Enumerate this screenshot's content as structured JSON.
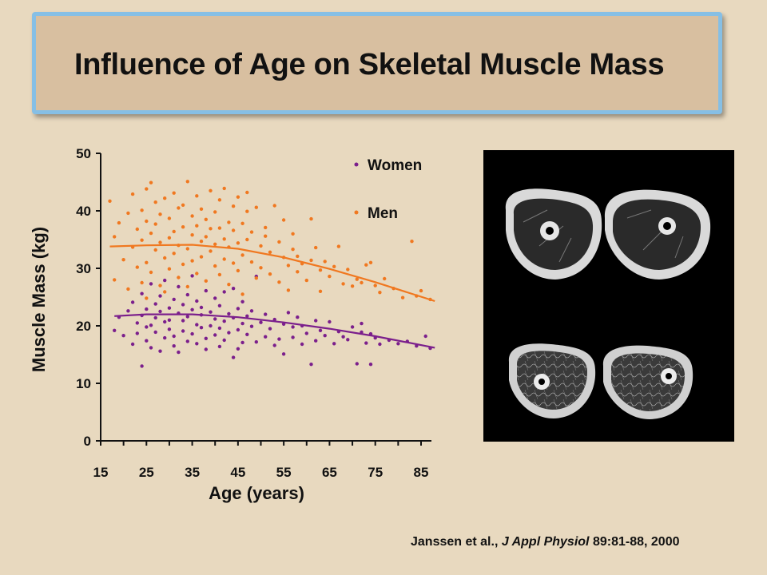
{
  "slide": {
    "title": "Influence of Age on Skeletal Muscle Mass"
  },
  "citation": {
    "authors": "Janssen et al.,",
    "journal": "J Appl Physiol",
    "reference": "89:81-88, 2000"
  },
  "image": {
    "description_icon": "mri-thigh-cross-section-icon"
  },
  "colors": {
    "women": "#7b1f8c",
    "men": "#f07820",
    "background": "#e8d9bf",
    "title_box": "#d8bfa0",
    "title_border": "#86bfe5"
  },
  "chart_data": {
    "type": "scatter",
    "title": "",
    "xlabel": "Age (years)",
    "ylabel": "Muscle Mass (kg)",
    "xlim": [
      15,
      90
    ],
    "ylim": [
      0,
      50
    ],
    "xticks": [
      15,
      25,
      35,
      45,
      55,
      65,
      75,
      85
    ],
    "yticks": [
      0,
      10,
      20,
      30,
      40,
      50
    ],
    "grid": false,
    "legend_position": "top-right",
    "series": [
      {
        "name": "Women",
        "color": "#7b1f8c",
        "trend": [
          [
            18,
            21.7
          ],
          [
            25,
            22.0
          ],
          [
            35,
            22.0
          ],
          [
            45,
            21.5
          ],
          [
            55,
            20.6
          ],
          [
            65,
            19.5
          ],
          [
            75,
            18.2
          ],
          [
            88,
            16.2
          ]
        ],
        "points": [
          [
            18,
            19.2
          ],
          [
            19,
            21.5
          ],
          [
            20,
            18.3
          ],
          [
            21,
            22.6
          ],
          [
            22,
            16.8
          ],
          [
            22,
            24.1
          ],
          [
            23,
            20.5
          ],
          [
            23,
            18.7
          ],
          [
            24,
            13.0
          ],
          [
            24,
            21.8
          ],
          [
            24,
            25.6
          ],
          [
            25,
            19.8
          ],
          [
            25,
            17.4
          ],
          [
            25,
            22.9
          ],
          [
            26,
            20.1
          ],
          [
            26,
            27.3
          ],
          [
            26,
            16.2
          ],
          [
            27,
            21.4
          ],
          [
            27,
            23.8
          ],
          [
            27,
            18.9
          ],
          [
            28,
            15.6
          ],
          [
            28,
            22.5
          ],
          [
            28,
            25.2
          ],
          [
            29,
            20.7
          ],
          [
            29,
            17.9
          ],
          [
            29,
            27.9
          ],
          [
            30,
            19.4
          ],
          [
            30,
            23.1
          ],
          [
            30,
            21.0
          ],
          [
            31,
            16.5
          ],
          [
            31,
            24.6
          ],
          [
            31,
            18.2
          ],
          [
            32,
            22.2
          ],
          [
            32,
            26.8
          ],
          [
            32,
            15.4
          ],
          [
            33,
            20.9
          ],
          [
            33,
            23.7
          ],
          [
            33,
            19.1
          ],
          [
            34,
            17.3
          ],
          [
            34,
            25.4
          ],
          [
            34,
            21.6
          ],
          [
            35,
            28.7
          ],
          [
            35,
            18.6
          ],
          [
            35,
            22.8
          ],
          [
            36,
            20.2
          ],
          [
            36,
            16.9
          ],
          [
            36,
            24.3
          ],
          [
            37,
            19.7
          ],
          [
            37,
            23.2
          ],
          [
            37,
            21.9
          ],
          [
            38,
            17.8
          ],
          [
            38,
            26.1
          ],
          [
            38,
            15.9
          ],
          [
            39,
            22.4
          ],
          [
            39,
            20.0
          ],
          [
            40,
            18.4
          ],
          [
            40,
            24.8
          ],
          [
            40,
            21.2
          ],
          [
            41,
            23.5
          ],
          [
            41,
            16.4
          ],
          [
            41,
            19.6
          ],
          [
            42,
            20.8
          ],
          [
            42,
            25.9
          ],
          [
            42,
            17.5
          ],
          [
            43,
            22.1
          ],
          [
            43,
            18.8
          ],
          [
            44,
            14.5
          ],
          [
            44,
            21.4
          ],
          [
            44,
            26.5
          ],
          [
            45,
            19.3
          ],
          [
            45,
            23.0
          ],
          [
            45,
            16.0
          ],
          [
            46,
            20.4
          ],
          [
            46,
            24.2
          ],
          [
            46,
            17.1
          ],
          [
            47,
            21.7
          ],
          [
            47,
            18.5
          ],
          [
            48,
            22.6
          ],
          [
            48,
            19.9
          ],
          [
            49,
            17.2
          ],
          [
            49,
            28.6
          ],
          [
            50,
            20.6
          ],
          [
            51,
            18.1
          ],
          [
            51,
            22.0
          ],
          [
            52,
            19.5
          ],
          [
            53,
            16.6
          ],
          [
            53,
            21.1
          ],
          [
            54,
            17.7
          ],
          [
            55,
            20.3
          ],
          [
            55,
            15.1
          ],
          [
            56,
            22.3
          ],
          [
            57,
            18.0
          ],
          [
            57,
            19.8
          ],
          [
            58,
            21.5
          ],
          [
            59,
            16.8
          ],
          [
            59,
            20.0
          ],
          [
            60,
            18.7
          ],
          [
            61,
            13.3
          ],
          [
            62,
            20.9
          ],
          [
            62,
            17.4
          ],
          [
            63,
            19.2
          ],
          [
            64,
            18.3
          ],
          [
            65,
            20.7
          ],
          [
            66,
            16.9
          ],
          [
            67,
            19.0
          ],
          [
            68,
            18.1
          ],
          [
            69,
            17.6
          ],
          [
            70,
            19.8
          ],
          [
            71,
            13.4
          ],
          [
            72,
            18.9
          ],
          [
            72,
            20.4
          ],
          [
            73,
            17.0
          ],
          [
            74,
            13.3
          ],
          [
            74,
            18.6
          ],
          [
            75,
            17.9
          ],
          [
            76,
            16.8
          ],
          [
            78,
            17.5
          ],
          [
            80,
            16.9
          ],
          [
            82,
            17.3
          ],
          [
            84,
            16.5
          ],
          [
            86,
            18.2
          ],
          [
            87,
            16.1
          ]
        ]
      },
      {
        "name": "Men",
        "color": "#f07820",
        "trend": [
          [
            17,
            33.8
          ],
          [
            25,
            34.0
          ],
          [
            35,
            34.1
          ],
          [
            45,
            33.4
          ],
          [
            55,
            31.9
          ],
          [
            65,
            29.9
          ],
          [
            75,
            27.6
          ],
          [
            88,
            24.3
          ]
        ],
        "points": [
          [
            17,
            41.7
          ],
          [
            18,
            35.5
          ],
          [
            18,
            28.0
          ],
          [
            19,
            37.9
          ],
          [
            20,
            31.5
          ],
          [
            21,
            39.6
          ],
          [
            21,
            26.4
          ],
          [
            22,
            33.7
          ],
          [
            22,
            42.9
          ],
          [
            23,
            30.2
          ],
          [
            23,
            36.8
          ],
          [
            24,
            40.1
          ],
          [
            24,
            27.5
          ],
          [
            24,
            34.9
          ],
          [
            25,
            43.8
          ],
          [
            25,
            38.2
          ],
          [
            25,
            31.0
          ],
          [
            25,
            24.8
          ],
          [
            26,
            44.9
          ],
          [
            26,
            36.1
          ],
          [
            26,
            29.3
          ],
          [
            27,
            41.5
          ],
          [
            27,
            33.2
          ],
          [
            27,
            37.7
          ],
          [
            28,
            27.0
          ],
          [
            28,
            39.4
          ],
          [
            28,
            34.5
          ],
          [
            29,
            42.2
          ],
          [
            29,
            31.8
          ],
          [
            29,
            25.9
          ],
          [
            30,
            38.7
          ],
          [
            30,
            35.3
          ],
          [
            30,
            29.9
          ],
          [
            31,
            43.1
          ],
          [
            31,
            32.6
          ],
          [
            31,
            36.4
          ],
          [
            32,
            40.5
          ],
          [
            32,
            28.4
          ],
          [
            32,
            34.0
          ],
          [
            33,
            37.2
          ],
          [
            33,
            30.7
          ],
          [
            33,
            41.0
          ],
          [
            34,
            45.1
          ],
          [
            34,
            33.4
          ],
          [
            34,
            26.8
          ],
          [
            35,
            39.1
          ],
          [
            35,
            35.8
          ],
          [
            35,
            31.3
          ],
          [
            36,
            42.6
          ],
          [
            36,
            29.1
          ],
          [
            36,
            37.4
          ],
          [
            37,
            34.7
          ],
          [
            37,
            40.3
          ],
          [
            37,
            32.0
          ],
          [
            38,
            38.5
          ],
          [
            38,
            27.8
          ],
          [
            38,
            35.5
          ],
          [
            39,
            43.5
          ],
          [
            39,
            33.0
          ],
          [
            39,
            36.9
          ],
          [
            40,
            30.4
          ],
          [
            40,
            39.8
          ],
          [
            40,
            34.2
          ],
          [
            41,
            41.9
          ],
          [
            41,
            28.9
          ],
          [
            41,
            37.0
          ],
          [
            42,
            35.1
          ],
          [
            42,
            31.6
          ],
          [
            42,
            43.9
          ],
          [
            43,
            38.0
          ],
          [
            43,
            33.7
          ],
          [
            43,
            27.2
          ],
          [
            44,
            36.6
          ],
          [
            44,
            40.8
          ],
          [
            44,
            30.9
          ],
          [
            45,
            34.4
          ],
          [
            45,
            42.4
          ],
          [
            45,
            29.6
          ],
          [
            46,
            37.8
          ],
          [
            46,
            32.3
          ],
          [
            46,
            25.5
          ],
          [
            47,
            39.9
          ],
          [
            47,
            35.0
          ],
          [
            47,
            43.2
          ],
          [
            48,
            31.1
          ],
          [
            48,
            36.3
          ],
          [
            49,
            28.3
          ],
          [
            49,
            40.6
          ],
          [
            50,
            33.9
          ],
          [
            50,
            30.1
          ],
          [
            51,
            37.1
          ],
          [
            51,
            35.6
          ],
          [
            52,
            32.8
          ],
          [
            52,
            29.0
          ],
          [
            53,
            40.9
          ],
          [
            54,
            34.6
          ],
          [
            54,
            27.6
          ],
          [
            55,
            31.9
          ],
          [
            55,
            38.4
          ],
          [
            56,
            30.5
          ],
          [
            56,
            26.2
          ],
          [
            57,
            33.3
          ],
          [
            57,
            36.0
          ],
          [
            58,
            29.4
          ],
          [
            58,
            32.1
          ],
          [
            59,
            30.8
          ],
          [
            60,
            27.9
          ],
          [
            61,
            38.6
          ],
          [
            61,
            31.4
          ],
          [
            62,
            33.6
          ],
          [
            63,
            29.7
          ],
          [
            63,
            26.0
          ],
          [
            64,
            31.2
          ],
          [
            65,
            28.6
          ],
          [
            66,
            30.3
          ],
          [
            67,
            33.8
          ],
          [
            68,
            27.3
          ],
          [
            69,
            29.8
          ],
          [
            70,
            26.9
          ],
          [
            71,
            28.1
          ],
          [
            72,
            27.5
          ],
          [
            73,
            30.6
          ],
          [
            74,
            31.0
          ],
          [
            75,
            27.0
          ],
          [
            76,
            25.8
          ],
          [
            77,
            28.2
          ],
          [
            79,
            26.5
          ],
          [
            81,
            24.9
          ],
          [
            83,
            34.7
          ],
          [
            84,
            25.2
          ],
          [
            85,
            26.1
          ],
          [
            87,
            24.6
          ]
        ]
      }
    ]
  }
}
